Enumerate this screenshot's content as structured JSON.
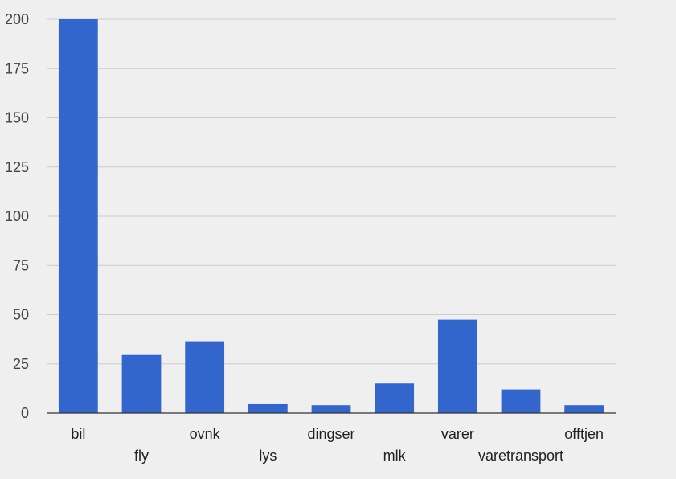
{
  "chart_data": {
    "type": "bar",
    "categories": [
      "bil",
      "fly",
      "ovnk",
      "lys",
      "dingser",
      "mlk",
      "varer",
      "varetransport",
      "offtjen"
    ],
    "values": [
      200,
      29.5,
      36.5,
      4.5,
      4,
      15,
      47.5,
      12,
      4
    ],
    "ylim": [
      0,
      200
    ],
    "yticks": [
      0,
      25,
      50,
      75,
      100,
      125,
      150,
      175,
      200
    ],
    "grid": true,
    "legend": "none",
    "colors": {
      "bar": "#3366cc",
      "background": "#efefef",
      "grid": "#cccccc",
      "axis": "#333333"
    }
  }
}
